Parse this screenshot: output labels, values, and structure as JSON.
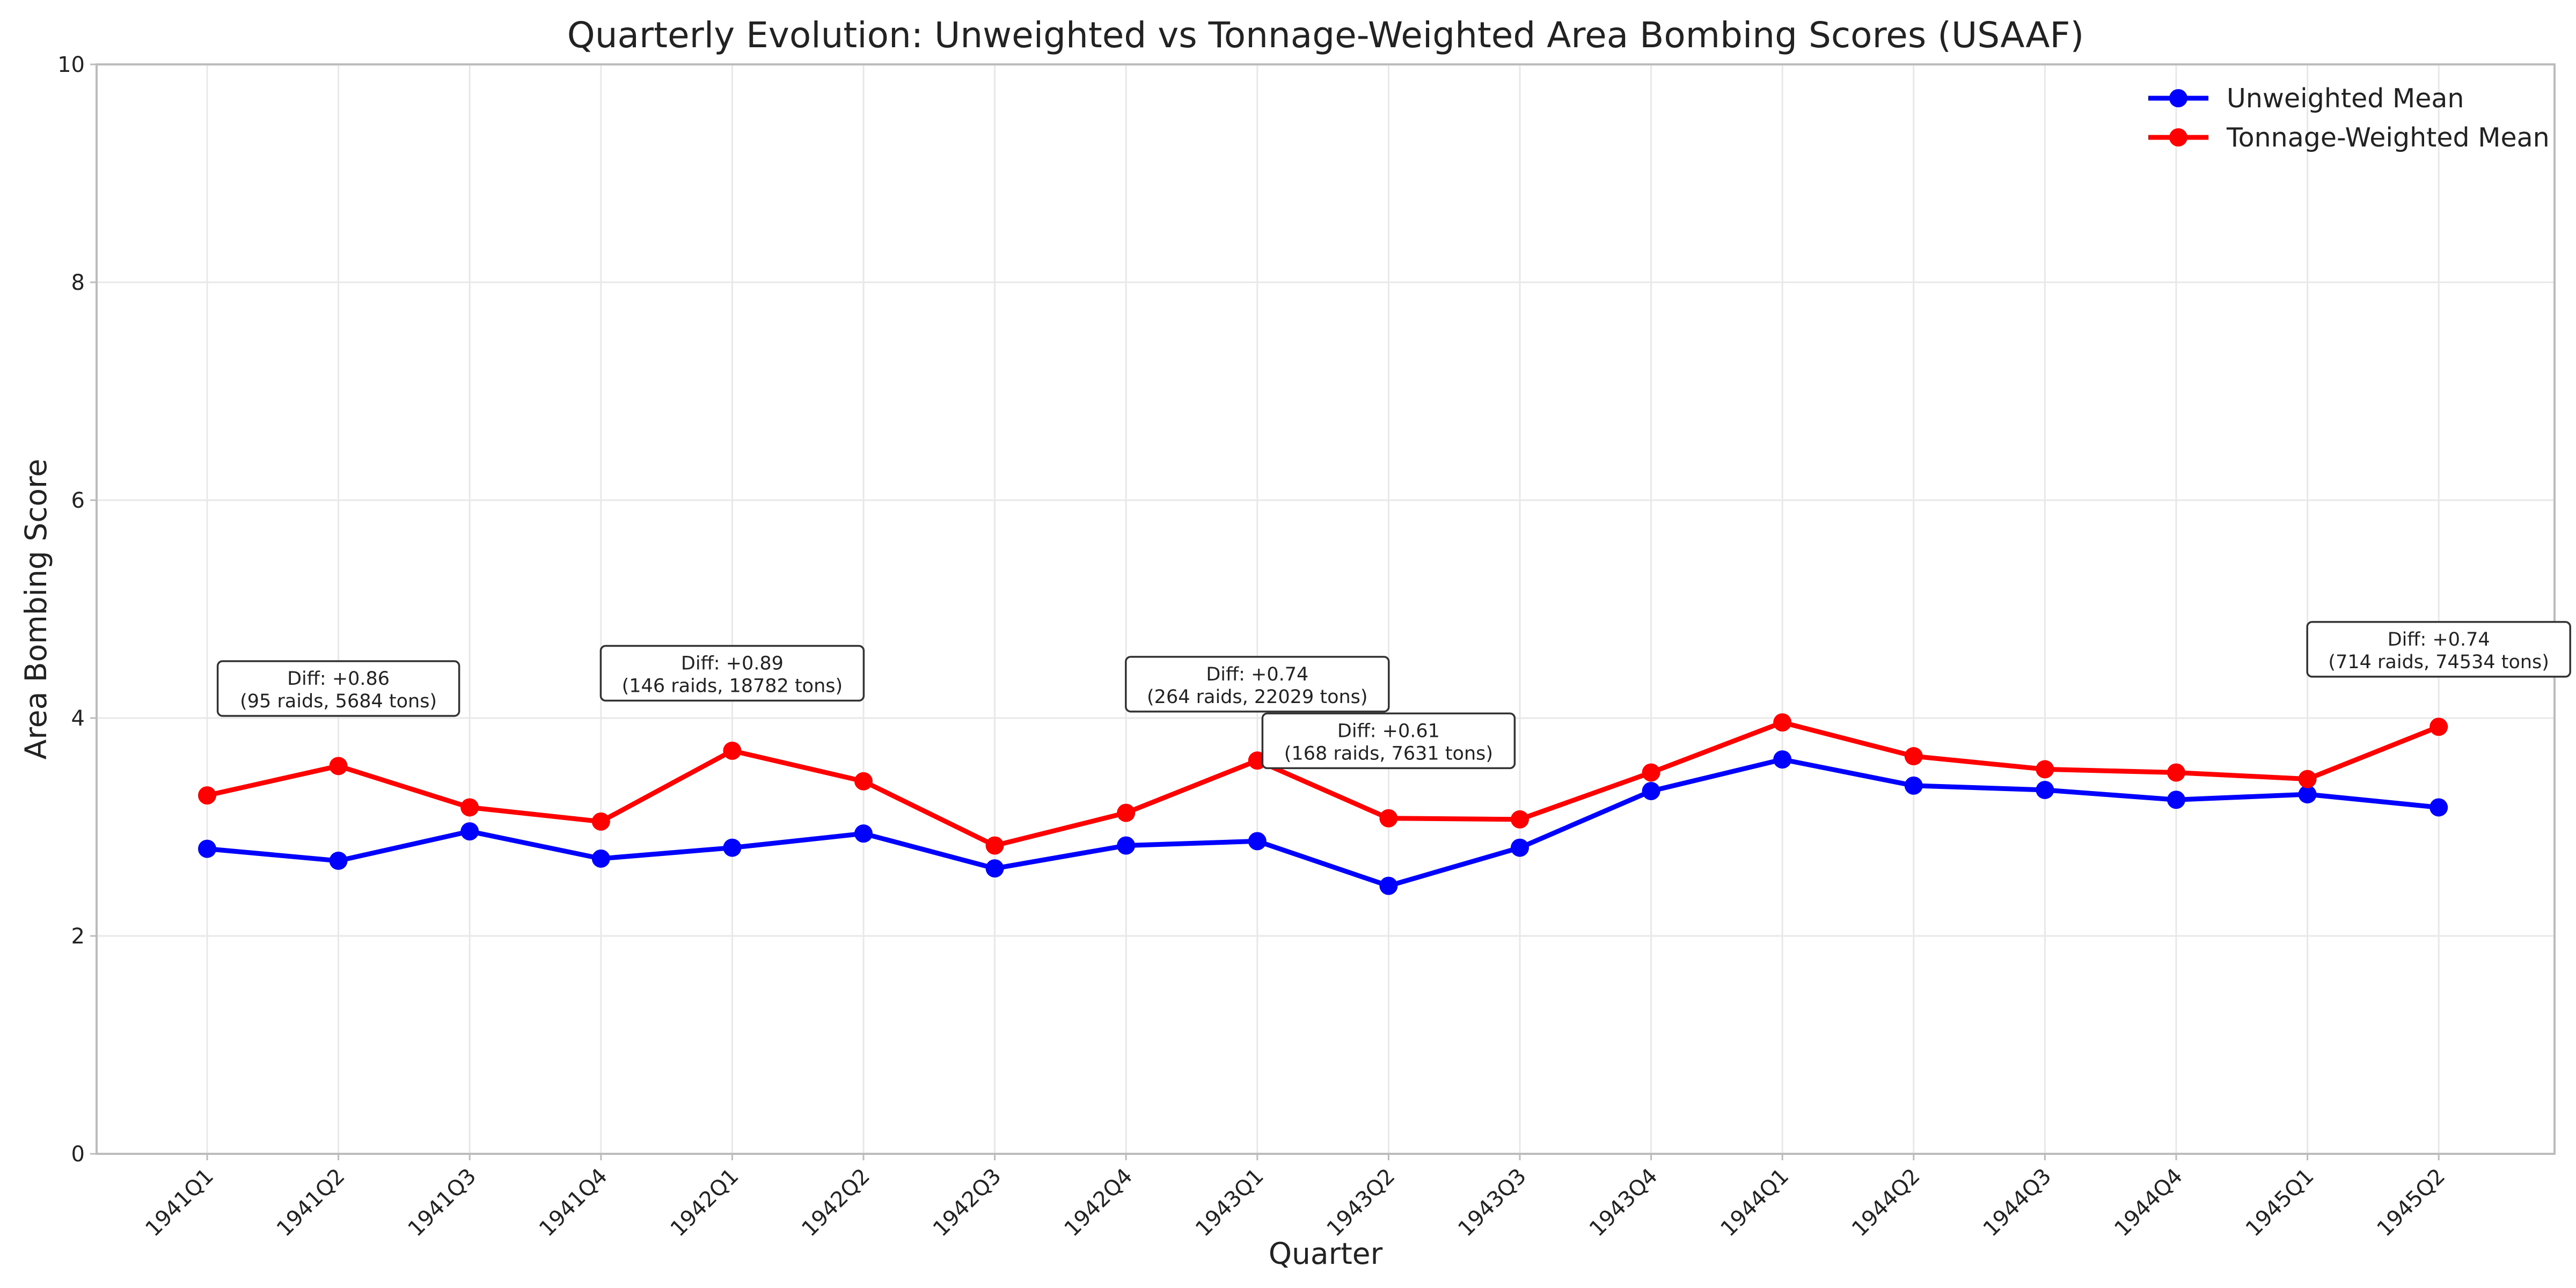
{
  "chart_data": {
    "type": "line",
    "title": "Quarterly Evolution: Unweighted vs Tonnage-Weighted Area Bombing Scores (USAAF)",
    "xlabel": "Quarter",
    "ylabel": "Area Bombing Score",
    "categories": [
      "1941Q1",
      "1941Q2",
      "1941Q3",
      "1941Q4",
      "1942Q1",
      "1942Q2",
      "1942Q3",
      "1942Q4",
      "1943Q1",
      "1943Q2",
      "1943Q3",
      "1943Q4",
      "1944Q1",
      "1944Q2",
      "1944Q3",
      "1944Q4",
      "1945Q1",
      "1945Q2"
    ],
    "ylim": [
      0,
      10
    ],
    "yticks": [
      0,
      2,
      4,
      6,
      8,
      10
    ],
    "grid": true,
    "legend_position": "top-right",
    "series": [
      {
        "name": "Unweighted Mean",
        "color": "#0000ff",
        "values": [
          2.8,
          2.69,
          2.96,
          2.71,
          2.81,
          2.94,
          2.62,
          2.83,
          2.87,
          2.46,
          2.81,
          3.33,
          3.62,
          3.38,
          3.34,
          3.25,
          3.3,
          3.18
        ]
      },
      {
        "name": "Tonnage-Weighted Mean",
        "color": "#ff0000",
        "values": [
          3.29,
          3.56,
          3.18,
          3.05,
          3.7,
          3.42,
          2.83,
          3.13,
          3.61,
          3.08,
          3.07,
          3.5,
          3.96,
          3.65,
          3.53,
          3.5,
          3.44,
          3.92
        ]
      }
    ],
    "annotations": [
      {
        "category": "1941Q2",
        "y": 4.02,
        "lines": [
          "Diff: +0.86",
          "(95 raids, 5684 tons)"
        ]
      },
      {
        "category": "1942Q1",
        "y": 4.16,
        "lines": [
          "Diff: +0.89",
          "(146 raids, 18782 tons)"
        ]
      },
      {
        "category": "1943Q1",
        "y": 4.06,
        "lines": [
          "Diff: +0.74",
          "(264 raids, 22029 tons)"
        ]
      },
      {
        "category": "1943Q2",
        "y": 3.54,
        "lines": [
          "Diff: +0.61",
          "(168 raids, 7631 tons)"
        ]
      },
      {
        "category": "1945Q2",
        "y": 4.38,
        "lines": [
          "Diff: +0.74",
          "(714 raids, 74534 tons)"
        ]
      }
    ]
  }
}
